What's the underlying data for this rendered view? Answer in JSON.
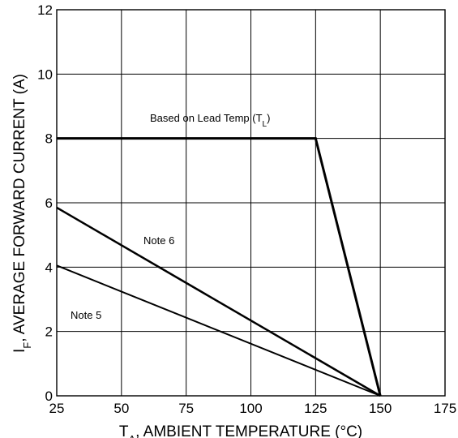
{
  "chart_data": {
    "type": "line",
    "xlabel": {
      "prefix": "T",
      "sub": "A",
      "rest": ", AMBIENT TEMPERATURE (°C)"
    },
    "ylabel": {
      "prefix": "I",
      "sub": "F",
      "rest": ", AVERAGE FORWARD CURRENT (A)"
    },
    "xlim": [
      25,
      175
    ],
    "ylim": [
      0,
      12
    ],
    "xticks": [
      25,
      50,
      75,
      100,
      125,
      150,
      175
    ],
    "yticks": [
      0,
      2,
      4,
      6,
      8,
      10,
      12
    ],
    "grid": true,
    "series": [
      {
        "name": "Based on Lead Temp (T_L)",
        "x": [
          25,
          125,
          150
        ],
        "y": [
          8,
          8,
          0
        ]
      },
      {
        "name": "Note 6",
        "x": [
          25,
          150
        ],
        "y": [
          5.85,
          0
        ]
      },
      {
        "name": "Note 5",
        "x": [
          25,
          150
        ],
        "y": [
          4.05,
          0
        ]
      }
    ],
    "annotations": {
      "lead_temp": {
        "text": "Based on Lead Temp (T",
        "sub": "L",
        "close": ")"
      },
      "note6": "Note 6",
      "note5": "Note 5"
    }
  }
}
